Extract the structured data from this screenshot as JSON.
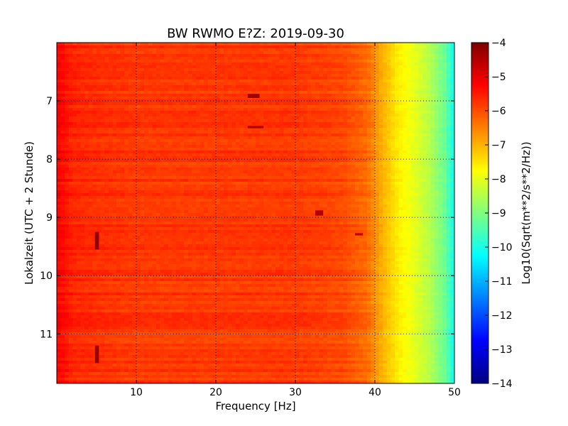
{
  "chart_data": {
    "type": "heatmap",
    "title": "BW RWMO E?Z: 2019-09-30",
    "xlabel": "Frequency [Hz]",
    "ylabel": "Lokalzeit (UTC + 2 Stunde)",
    "xlim": [
      0,
      50
    ],
    "ylim": [
      11.85,
      6.0
    ],
    "x_ticks": [
      10,
      20,
      30,
      40,
      50
    ],
    "y_ticks": [
      7,
      8,
      9,
      10,
      11
    ],
    "grid": true,
    "colormap": "jet",
    "colorbar": {
      "label": "Log10(Sqrt(m**2/s**2/Hz))",
      "range": [
        -14,
        -4
      ],
      "ticks": [
        -4,
        -5,
        -6,
        -7,
        -8,
        -9,
        -10,
        -11,
        -12,
        -13,
        -14
      ]
    },
    "spectrum_profile": {
      "frequency_hz": [
        0,
        1,
        2,
        5,
        10,
        20,
        30,
        36,
        39,
        41,
        43,
        45,
        47,
        49,
        50
      ],
      "log10_amplitude": [
        -5.2,
        -5.4,
        -5.6,
        -5.7,
        -5.8,
        -5.8,
        -5.8,
        -5.95,
        -6.3,
        -7.0,
        -7.6,
        -8.0,
        -8.5,
        -9.3,
        -10.2
      ]
    },
    "features": [
      {
        "frequency_hz": [
          24,
          25.5
        ],
        "time": [
          6.88,
          6.95
        ],
        "log10_amplitude": -4.3
      },
      {
        "frequency_hz": [
          24,
          26
        ],
        "time": [
          7.43,
          7.47
        ],
        "log10_amplitude": -4.5
      },
      {
        "frequency_hz": [
          4.8,
          5.3
        ],
        "time": [
          9.25,
          9.55
        ],
        "log10_amplitude": -4.2
      },
      {
        "frequency_hz": [
          4.8,
          5.3
        ],
        "time": [
          11.2,
          11.5
        ],
        "log10_amplitude": -4.3
      },
      {
        "frequency_hz": [
          32.5,
          33.5
        ],
        "time": [
          8.88,
          8.97
        ],
        "log10_amplitude": -4.5
      },
      {
        "frequency_hz": [
          37.5,
          38.5
        ],
        "time": [
          9.27,
          9.31
        ],
        "log10_amplitude": -4.7
      }
    ]
  }
}
